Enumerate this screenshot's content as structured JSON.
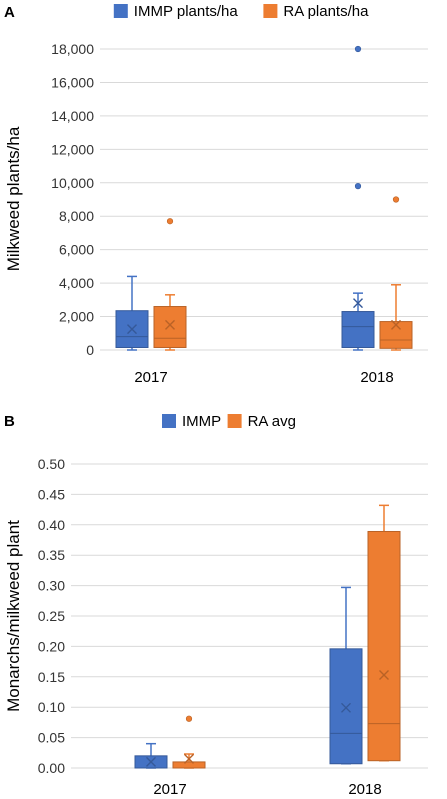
{
  "chart_data": [
    {
      "panel": "A",
      "type": "box",
      "categories": [
        "2017",
        "2018"
      ],
      "ylabel": "Milkweed plants/ha",
      "ylim": [
        0,
        18000
      ],
      "yticks": [
        0,
        2000,
        4000,
        6000,
        8000,
        10000,
        12000,
        14000,
        16000,
        18000
      ],
      "ytick_labels": [
        "0",
        "2,000",
        "4,000",
        "6,000",
        "8,000",
        "10,000",
        "12,000",
        "14,000",
        "16,000",
        "18,000"
      ],
      "legend_position": "top",
      "series": [
        {
          "name": "IMMP plants/ha",
          "color": "#4472C4",
          "boxes": [
            {
              "min": 0,
              "q1": 150,
              "median": 800,
              "q3": 2350,
              "max": 4400,
              "mean": 1250,
              "outliers": []
            },
            {
              "min": 0,
              "q1": 150,
              "median": 1400,
              "q3": 2300,
              "max": 3400,
              "mean": 2800,
              "outliers": [
                9800,
                18000
              ]
            }
          ]
        },
        {
          "name": "RA plants/ha",
          "color": "#ED7D31",
          "boxes": [
            {
              "min": 0,
              "q1": 150,
              "median": 700,
              "q3": 2600,
              "max": 3300,
              "mean": 1500,
              "outliers": [
                7700
              ]
            },
            {
              "min": 0,
              "q1": 100,
              "median": 600,
              "q3": 1700,
              "max": 3900,
              "mean": 1500,
              "outliers": [
                9000
              ]
            }
          ]
        }
      ]
    },
    {
      "panel": "B",
      "type": "box",
      "categories": [
        "2017",
        "2018"
      ],
      "ylabel": "Monarchs/milkweed plant",
      "ylim": [
        0,
        0.5
      ],
      "yticks": [
        0,
        0.05,
        0.1,
        0.15,
        0.2,
        0.25,
        0.3,
        0.35,
        0.4,
        0.45,
        0.5
      ],
      "ytick_labels": [
        "0.00",
        "0.05",
        "0.10",
        "0.15",
        "0.20",
        "0.25",
        "0.30",
        "0.35",
        "0.40",
        "0.45",
        "0.50"
      ],
      "legend_position": "top",
      "series": [
        {
          "name": "IMMP",
          "color": "#4472C4",
          "boxes": [
            {
              "min": 0,
              "q1": 0,
              "median": 0,
              "q3": 0.02,
              "max": 0.04,
              "mean": 0.01,
              "outliers": []
            },
            {
              "min": 0.007,
              "q1": 0.007,
              "median": 0.057,
              "q3": 0.196,
              "max": 0.297,
              "mean": 0.099,
              "outliers": []
            }
          ]
        },
        {
          "name": "RA avg",
          "color": "#ED7D31",
          "boxes": [
            {
              "min": 0,
              "q1": 0,
              "median": 0,
              "q3": 0.01,
              "max": 0.023,
              "mean": 0.015,
              "outliers": [
                0.081
              ]
            },
            {
              "min": 0.012,
              "q1": 0.012,
              "median": 0.073,
              "q3": 0.389,
              "max": 0.432,
              "mean": 0.153,
              "outliers": []
            }
          ]
        }
      ]
    }
  ]
}
